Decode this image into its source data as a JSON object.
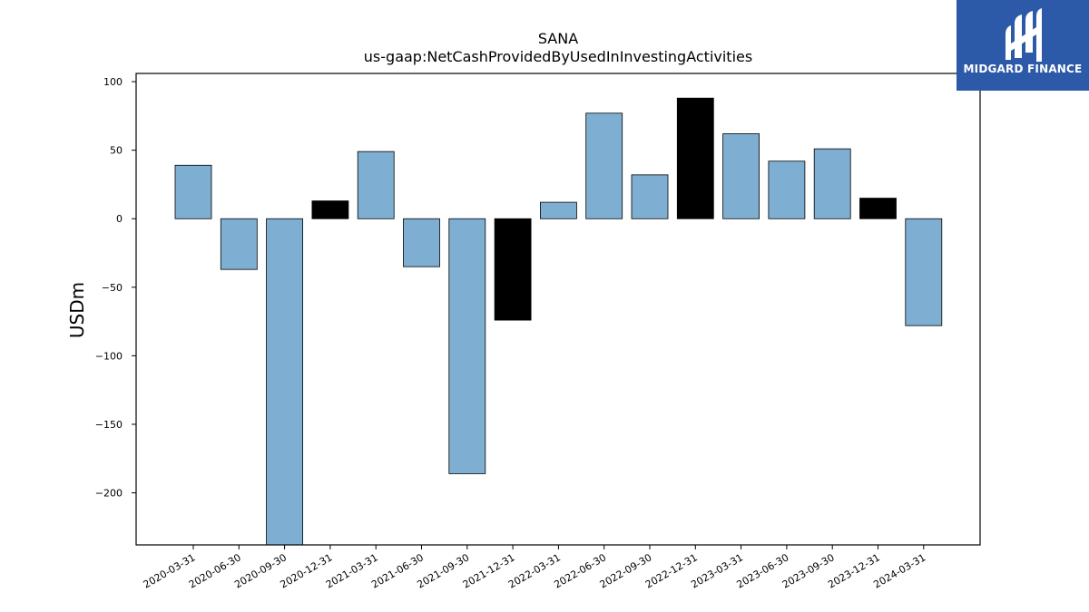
{
  "brand": {
    "name": "MIDGARD FINANCE",
    "icon": "midgard-m-logo-icon",
    "background": "#2d5aa8"
  },
  "colors": {
    "bar_default": "#7eafd3",
    "bar_highlight": "#000000",
    "edge": "#000000"
  },
  "chart_data": {
    "type": "bar",
    "title": "SANA",
    "subtitle": "us-gaap:NetCashProvidedByUsedInInvestingActivities",
    "xlabel": "",
    "ylabel": "USDm",
    "ylim": [
      -238,
      106
    ],
    "yticks": [
      100,
      50,
      0,
      -50,
      -100,
      -150,
      -200
    ],
    "grid": false,
    "categories": [
      "2020-03-31",
      "2020-06-30",
      "2020-09-30",
      "2020-12-31",
      "2021-03-31",
      "2021-06-30",
      "2021-09-30",
      "2021-12-31",
      "2022-03-31",
      "2022-06-30",
      "2022-09-30",
      "2022-12-31",
      "2023-03-31",
      "2023-06-30",
      "2023-09-30",
      "2023-12-31",
      "2024-03-31"
    ],
    "values": [
      39,
      -37,
      -240,
      13,
      49,
      -35,
      -186,
      -74,
      12,
      77,
      32,
      88,
      62,
      42,
      51,
      15,
      -78
    ],
    "highlight": [
      false,
      false,
      false,
      true,
      false,
      false,
      false,
      true,
      false,
      false,
      false,
      true,
      false,
      false,
      false,
      true,
      false
    ]
  }
}
